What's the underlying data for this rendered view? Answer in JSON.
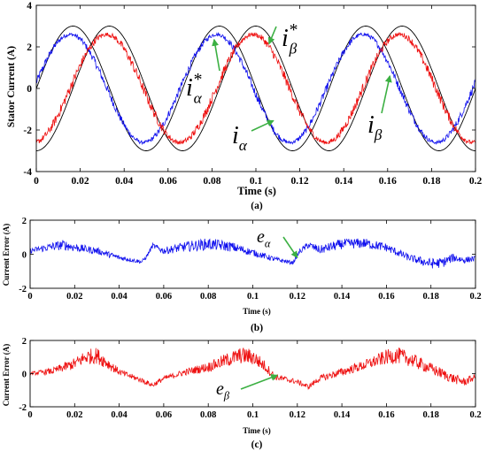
{
  "colors": {
    "blue": "#1010ee",
    "red": "#ee1010",
    "ref": "#000000",
    "arrow": "#3cb043"
  },
  "chart_data": [
    {
      "type": "line",
      "panel": "a",
      "caption": "(a)",
      "xlabel": "Time (s)",
      "ylabel": "Stator Current (A)",
      "xlim": [
        0,
        0.2
      ],
      "ylim": [
        -4,
        4
      ],
      "xticks": [
        "0",
        "0.02",
        "0.04",
        "0.06",
        "0.08",
        "0.1",
        "0.12",
        "0.14",
        "0.16",
        "0.18",
        "0.2"
      ],
      "yticks": [
        "-4",
        "-2",
        "0",
        "2",
        "4"
      ],
      "grid": false,
      "frequency_hz": 15,
      "series": [
        {
          "name": "iα*",
          "color": "#000000",
          "amplitude": 3.0,
          "peaks_at": [
            0.0167,
            0.0833,
            0.15
          ],
          "noise": 0
        },
        {
          "name": "iβ*",
          "color": "#000000",
          "amplitude": 3.0,
          "peaks_at": [
            0.0333,
            0.1,
            0.1667
          ],
          "noise": 0
        },
        {
          "name": "iα",
          "color": "#1010ee",
          "amplitude": 2.6,
          "peaks_at": [
            0.0155,
            0.082,
            0.149
          ],
          "noise": 0.2
        },
        {
          "name": "iβ",
          "color": "#ee1010",
          "amplitude": 2.6,
          "peaks_at": [
            0.032,
            0.099,
            0.165
          ],
          "noise": 0.25
        }
      ],
      "annotations": [
        {
          "main": "i",
          "sub": "α",
          "sup": "*",
          "target": [
            0.081,
            2.35
          ]
        },
        {
          "main": "i",
          "sub": "β",
          "sup": "*",
          "target": [
            0.106,
            2.15
          ]
        },
        {
          "main": "i",
          "sub": "α",
          "sup": "",
          "target": [
            0.108,
            -1.55
          ]
        },
        {
          "main": "i",
          "sub": "β",
          "sup": "",
          "target": [
            0.161,
            0.6
          ]
        }
      ]
    },
    {
      "type": "line",
      "panel": "b",
      "caption": "(b)",
      "xlabel": "Time (s)",
      "ylabel": "Current Error (A)",
      "xlim": [
        0,
        0.2
      ],
      "ylim": [
        -2,
        2
      ],
      "xticks": [
        "0",
        "0.02",
        "0.04",
        "0.06",
        "0.08",
        "0.1",
        "0.12",
        "0.14",
        "0.16",
        "0.18",
        "0.2"
      ],
      "yticks": [
        "-2",
        "0",
        "2"
      ],
      "grid": false,
      "series": [
        {
          "name": "eα",
          "color": "#1010ee",
          "x": [
            0,
            0.01,
            0.015,
            0.02,
            0.03,
            0.04,
            0.05,
            0.052,
            0.055,
            0.06,
            0.07,
            0.08,
            0.09,
            0.1,
            0.11,
            0.118,
            0.121,
            0.125,
            0.13,
            0.14,
            0.15,
            0.16,
            0.17,
            0.18,
            0.185,
            0.19,
            0.195,
            0.2
          ],
          "y": [
            0.2,
            0.45,
            0.55,
            0.4,
            0.2,
            -0.2,
            -0.45,
            -0.2,
            0.5,
            0.2,
            0.45,
            0.6,
            0.45,
            0.1,
            -0.3,
            -0.5,
            0.15,
            0.55,
            0.25,
            0.6,
            0.65,
            0.4,
            -0.2,
            -0.55,
            -0.5,
            -0.2,
            -0.35,
            -0.25
          ],
          "noise": [
            0.15,
            0.25,
            0.3,
            0.25,
            0.2,
            0.15,
            0.1,
            0.1,
            0.15,
            0.2,
            0.3,
            0.35,
            0.3,
            0.2,
            0.15,
            0.1,
            0.15,
            0.2,
            0.25,
            0.3,
            0.3,
            0.25,
            0.2,
            0.3,
            0.3,
            0.25,
            0.2,
            0.15
          ]
        }
      ],
      "annotations": [
        {
          "main": "e",
          "sub": "α",
          "sup": "",
          "target": [
            0.12,
            -0.2
          ]
        }
      ]
    },
    {
      "type": "line",
      "panel": "c",
      "caption": "(c)",
      "xlabel": "Time (s)",
      "ylabel": "Current Error (A)",
      "xlim": [
        0,
        0.2
      ],
      "ylim": [
        -2,
        2
      ],
      "xticks": [
        "0",
        "0.02",
        "0.04",
        "0.06",
        "0.08",
        "0.1",
        "0.12",
        "0.14",
        "0.16",
        "0.18",
        "0.2"
      ],
      "yticks": [
        "-2",
        "0",
        "2"
      ],
      "grid": false,
      "series": [
        {
          "name": "eβ",
          "color": "#ee1010",
          "x": [
            0,
            0.01,
            0.02,
            0.025,
            0.03,
            0.035,
            0.04,
            0.05,
            0.055,
            0.06,
            0.07,
            0.08,
            0.09,
            0.095,
            0.1,
            0.105,
            0.11,
            0.12,
            0.125,
            0.13,
            0.14,
            0.15,
            0.16,
            0.165,
            0.17,
            0.18,
            0.19,
            0.195,
            0.2
          ],
          "y": [
            0,
            0.15,
            0.6,
            1.0,
            1.1,
            0.6,
            0.1,
            -0.4,
            -0.7,
            -0.3,
            0.1,
            0.4,
            0.9,
            1.1,
            1.0,
            0.5,
            -0.2,
            -0.5,
            -0.8,
            -0.3,
            0.1,
            0.5,
            1.0,
            1.1,
            0.9,
            0.3,
            -0.3,
            -0.5,
            -0.2
          ],
          "noise": [
            0.1,
            0.2,
            0.35,
            0.45,
            0.5,
            0.35,
            0.2,
            0.15,
            0.15,
            0.15,
            0.2,
            0.3,
            0.45,
            0.5,
            0.5,
            0.35,
            0.2,
            0.15,
            0.15,
            0.2,
            0.25,
            0.3,
            0.45,
            0.5,
            0.45,
            0.35,
            0.3,
            0.25,
            0.2
          ]
        }
      ],
      "annotations": [
        {
          "main": "e",
          "sub": "β",
          "sup": "",
          "target": [
            0.111,
            -0.1
          ]
        }
      ]
    }
  ]
}
